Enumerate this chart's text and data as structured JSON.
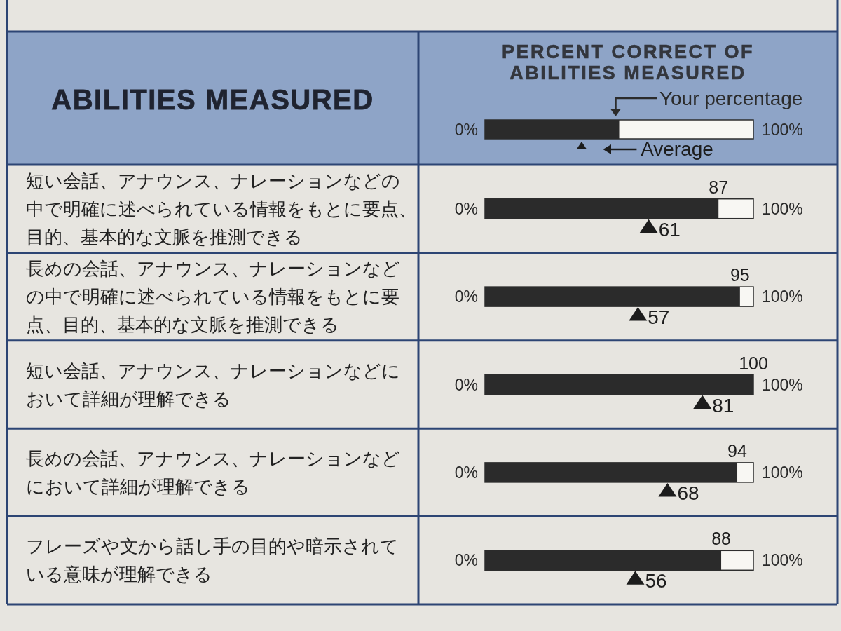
{
  "chart_data": {
    "type": "bar",
    "orientation": "horizontal",
    "title": "PERCENT CORRECT OF ABILITIES MEASURED",
    "ylabel": "ABILITIES MEASURED",
    "categories": [
      "短い会話、アナウンス、ナレーションなどの中で明確に述べられている情報をもとに要点、目的、基本的な文脈を推測できる",
      "長めの会話、アナウンス、ナレーションなどの中で明確に述べられている情報をもとに要点、目的、基本的な文脈を推測できる",
      "短い会話、アナウンス、ナレーションなどにおいて詳細が理解できる",
      "長めの会話、アナウンス、ナレーションなどにおいて詳細が理解できる",
      "フレーズや文から話し手の目的や暗示されている意味が理解できる"
    ],
    "series": [
      {
        "name": "Your percentage",
        "type": "bar",
        "color": "#2b2b2b",
        "values": [
          87,
          95,
          100,
          94,
          88
        ]
      },
      {
        "name": "Average",
        "type": "scatter",
        "marker": "triangle",
        "color": "#1c1c1c",
        "values": [
          61,
          57,
          81,
          68,
          56
        ]
      }
    ],
    "xlim": [
      0,
      100
    ],
    "annotations": [
      "0%",
      "100%"
    ],
    "data_labels": true,
    "legend": "top"
  }
}
